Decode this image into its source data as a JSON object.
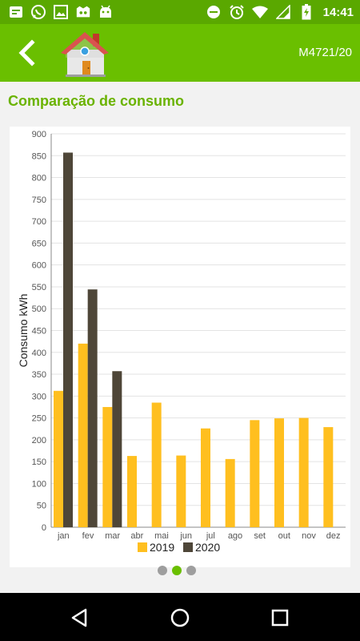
{
  "status_bar": {
    "time": "14:41",
    "left_icons": [
      "keep-notes-icon",
      "whatsapp-icon",
      "gallery-icon",
      "game-icon",
      "android-icon"
    ],
    "right_icons": [
      "do-not-disturb-icon",
      "alarm-icon",
      "wifi-icon",
      "signal-icon",
      "battery-charging-icon"
    ]
  },
  "app_bar": {
    "back_icon": "back-chevron-icon",
    "logo_icon": "house-icon",
    "record_id": "M4721/20"
  },
  "section": {
    "title": "Comparação de consumo"
  },
  "colors": {
    "status_bar": "#5aa800",
    "app_bar": "#6abf00",
    "title": "#6ab300",
    "series_2019": "#ffbf1f",
    "series_2020": "#4e4638"
  },
  "chart_data": {
    "type": "bar",
    "ylabel": "Consumo kWh",
    "xlabel": "",
    "ylim": [
      0,
      900
    ],
    "yticks": [
      0,
      50,
      100,
      150,
      200,
      250,
      300,
      350,
      400,
      450,
      500,
      550,
      600,
      650,
      700,
      750,
      800,
      850,
      900
    ],
    "grid": true,
    "legend_position": "bottom-center",
    "categories": [
      "jan",
      "fev",
      "mar",
      "abr",
      "mai",
      "jun",
      "jul",
      "ago",
      "set",
      "out",
      "nov",
      "dez"
    ],
    "series": [
      {
        "name": "2019",
        "color": "#ffbf1f",
        "values": [
          312,
          420,
          275,
          163,
          285,
          164,
          226,
          156,
          245,
          249,
          250,
          229
        ]
      },
      {
        "name": "2020",
        "color": "#4e4638",
        "values": [
          857,
          544,
          357,
          null,
          null,
          null,
          null,
          null,
          null,
          null,
          null,
          null
        ]
      }
    ]
  },
  "pager": {
    "pages": 3,
    "active_index": 1
  },
  "nav_bar": {
    "buttons": [
      "back-triangle-icon",
      "home-circle-icon",
      "recents-square-icon"
    ]
  }
}
